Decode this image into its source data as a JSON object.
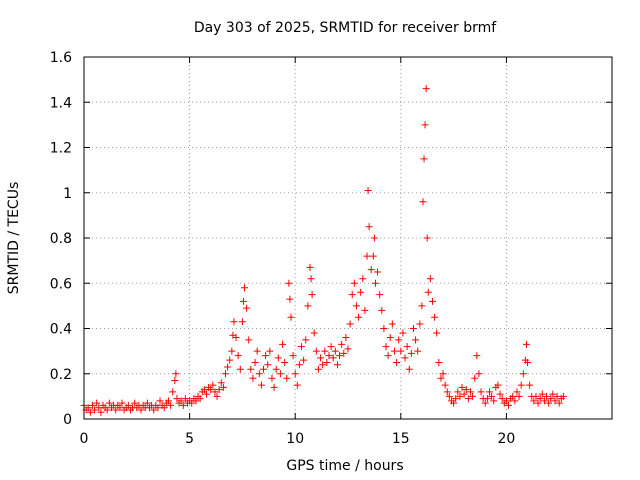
{
  "chart_data": {
    "type": "scatter",
    "title": "Day 303 of 2025, SRMTID for receiver brmf",
    "xlabel": "GPS time / hours",
    "ylabel": "SRMTID / TECUs",
    "xlim": [
      0,
      25
    ],
    "ylim": [
      0,
      1.6
    ],
    "xticks": [
      0,
      5,
      10,
      15,
      20
    ],
    "xtick_labels": [
      "0",
      "5",
      "10",
      "15",
      "20"
    ],
    "yticks": [
      0,
      0.2,
      0.4,
      0.6,
      0.8,
      1.0,
      1.2,
      1.4,
      1.6
    ],
    "ytick_labels": [
      "0",
      "0.2",
      "0.4",
      "0.6",
      "0.8",
      "1",
      "1.2",
      "1.4",
      "1.6"
    ],
    "grid": true,
    "marker": "plus",
    "color": "#ff0000",
    "series": [
      {
        "name": "SRMTID",
        "points": [
          [
            0.0,
            0.06
          ],
          [
            0.1,
            0.04
          ],
          [
            0.2,
            0.05
          ],
          [
            0.3,
            0.03
          ],
          [
            0.4,
            0.06
          ],
          [
            0.5,
            0.04
          ],
          [
            0.6,
            0.07
          ],
          [
            0.7,
            0.05
          ],
          [
            0.8,
            0.03
          ],
          [
            0.9,
            0.06
          ],
          [
            1.0,
            0.05
          ],
          [
            1.1,
            0.04
          ],
          [
            1.2,
            0.07
          ],
          [
            1.3,
            0.05
          ],
          [
            1.4,
            0.06
          ],
          [
            1.5,
            0.04
          ],
          [
            1.6,
            0.06
          ],
          [
            1.7,
            0.05
          ],
          [
            1.8,
            0.07
          ],
          [
            1.9,
            0.04
          ],
          [
            2.0,
            0.05
          ],
          [
            2.1,
            0.06
          ],
          [
            2.2,
            0.04
          ],
          [
            2.3,
            0.05
          ],
          [
            2.4,
            0.07
          ],
          [
            2.5,
            0.05
          ],
          [
            2.6,
            0.06
          ],
          [
            2.7,
            0.04
          ],
          [
            2.8,
            0.06
          ],
          [
            2.9,
            0.05
          ],
          [
            3.0,
            0.07
          ],
          [
            3.1,
            0.05
          ],
          [
            3.2,
            0.06
          ],
          [
            3.3,
            0.04
          ],
          [
            3.4,
            0.06
          ],
          [
            3.5,
            0.05
          ],
          [
            3.6,
            0.08
          ],
          [
            3.7,
            0.06
          ],
          [
            3.8,
            0.05
          ],
          [
            3.9,
            0.07
          ],
          [
            4.0,
            0.08
          ],
          [
            4.1,
            0.06
          ],
          [
            4.2,
            0.12
          ],
          [
            4.3,
            0.17
          ],
          [
            4.35,
            0.2
          ],
          [
            4.4,
            0.09
          ],
          [
            4.5,
            0.07
          ],
          [
            4.6,
            0.08
          ],
          [
            4.7,
            0.06
          ],
          [
            4.8,
            0.09
          ],
          [
            4.9,
            0.07
          ],
          [
            5.0,
            0.08
          ],
          [
            5.1,
            0.07
          ],
          [
            5.2,
            0.09
          ],
          [
            5.3,
            0.08
          ],
          [
            5.4,
            0.1
          ],
          [
            5.5,
            0.09
          ],
          [
            5.6,
            0.12
          ],
          [
            5.7,
            0.13
          ],
          [
            5.8,
            0.11
          ],
          [
            5.9,
            0.14
          ],
          [
            6.0,
            0.13
          ],
          [
            6.1,
            0.15
          ],
          [
            6.2,
            0.12
          ],
          [
            6.3,
            0.1
          ],
          [
            6.4,
            0.13
          ],
          [
            6.5,
            0.16
          ],
          [
            6.6,
            0.14
          ],
          [
            6.7,
            0.2
          ],
          [
            6.8,
            0.23
          ],
          [
            6.9,
            0.26
          ],
          [
            7.0,
            0.3
          ],
          [
            7.05,
            0.37
          ],
          [
            7.1,
            0.43
          ],
          [
            7.2,
            0.36
          ],
          [
            7.3,
            0.28
          ],
          [
            7.4,
            0.22
          ],
          [
            7.5,
            0.43
          ],
          [
            7.55,
            0.52
          ],
          [
            7.6,
            0.58
          ],
          [
            7.7,
            0.49
          ],
          [
            7.8,
            0.35
          ],
          [
            7.9,
            0.22
          ],
          [
            8.0,
            0.18
          ],
          [
            8.1,
            0.25
          ],
          [
            8.2,
            0.3
          ],
          [
            8.3,
            0.2
          ],
          [
            8.4,
            0.15
          ],
          [
            8.5,
            0.22
          ],
          [
            8.6,
            0.28
          ],
          [
            8.7,
            0.24
          ],
          [
            8.8,
            0.3
          ],
          [
            8.9,
            0.18
          ],
          [
            9.0,
            0.14
          ],
          [
            9.1,
            0.22
          ],
          [
            9.2,
            0.27
          ],
          [
            9.3,
            0.2
          ],
          [
            9.4,
            0.33
          ],
          [
            9.5,
            0.25
          ],
          [
            9.6,
            0.18
          ],
          [
            9.7,
            0.6
          ],
          [
            9.75,
            0.53
          ],
          [
            9.8,
            0.45
          ],
          [
            9.9,
            0.28
          ],
          [
            10.0,
            0.2
          ],
          [
            10.1,
            0.15
          ],
          [
            10.2,
            0.24
          ],
          [
            10.3,
            0.32
          ],
          [
            10.4,
            0.26
          ],
          [
            10.5,
            0.35
          ],
          [
            10.6,
            0.5
          ],
          [
            10.7,
            0.67
          ],
          [
            10.75,
            0.62
          ],
          [
            10.8,
            0.55
          ],
          [
            10.9,
            0.38
          ],
          [
            11.0,
            0.3
          ],
          [
            11.1,
            0.22
          ],
          [
            11.2,
            0.27
          ],
          [
            11.3,
            0.24
          ],
          [
            11.4,
            0.3
          ],
          [
            11.5,
            0.25
          ],
          [
            11.6,
            0.28
          ],
          [
            11.7,
            0.32
          ],
          [
            11.8,
            0.27
          ],
          [
            11.9,
            0.3
          ],
          [
            12.0,
            0.24
          ],
          [
            12.1,
            0.28
          ],
          [
            12.2,
            0.33
          ],
          [
            12.3,
            0.29
          ],
          [
            12.4,
            0.36
          ],
          [
            12.5,
            0.31
          ],
          [
            12.6,
            0.42
          ],
          [
            12.7,
            0.55
          ],
          [
            12.8,
            0.6
          ],
          [
            12.9,
            0.5
          ],
          [
            13.0,
            0.45
          ],
          [
            13.1,
            0.56
          ],
          [
            13.2,
            0.62
          ],
          [
            13.3,
            0.48
          ],
          [
            13.4,
            0.72
          ],
          [
            13.45,
            1.01
          ],
          [
            13.5,
            0.85
          ],
          [
            13.6,
            0.66
          ],
          [
            13.7,
            0.72
          ],
          [
            13.75,
            0.8
          ],
          [
            13.8,
            0.6
          ],
          [
            13.9,
            0.65
          ],
          [
            14.0,
            0.55
          ],
          [
            14.1,
            0.48
          ],
          [
            14.2,
            0.4
          ],
          [
            14.3,
            0.32
          ],
          [
            14.4,
            0.28
          ],
          [
            14.5,
            0.36
          ],
          [
            14.6,
            0.42
          ],
          [
            14.7,
            0.3
          ],
          [
            14.8,
            0.25
          ],
          [
            14.9,
            0.35
          ],
          [
            15.0,
            0.3
          ],
          [
            15.1,
            0.38
          ],
          [
            15.2,
            0.27
          ],
          [
            15.3,
            0.32
          ],
          [
            15.4,
            0.22
          ],
          [
            15.5,
            0.29
          ],
          [
            15.6,
            0.4
          ],
          [
            15.7,
            0.35
          ],
          [
            15.8,
            0.3
          ],
          [
            15.9,
            0.42
          ],
          [
            16.0,
            0.5
          ],
          [
            16.05,
            0.96
          ],
          [
            16.1,
            1.15
          ],
          [
            16.15,
            1.3
          ],
          [
            16.2,
            1.46
          ],
          [
            16.25,
            0.8
          ],
          [
            16.3,
            0.56
          ],
          [
            16.4,
            0.62
          ],
          [
            16.5,
            0.52
          ],
          [
            16.6,
            0.45
          ],
          [
            16.7,
            0.38
          ],
          [
            16.8,
            0.25
          ],
          [
            16.9,
            0.18
          ],
          [
            17.0,
            0.2
          ],
          [
            17.1,
            0.15
          ],
          [
            17.2,
            0.12
          ],
          [
            17.3,
            0.1
          ],
          [
            17.4,
            0.08
          ],
          [
            17.5,
            0.07
          ],
          [
            17.6,
            0.09
          ],
          [
            17.7,
            0.12
          ],
          [
            17.8,
            0.1
          ],
          [
            17.9,
            0.14
          ],
          [
            18.0,
            0.11
          ],
          [
            18.1,
            0.13
          ],
          [
            18.2,
            0.09
          ],
          [
            18.3,
            0.12
          ],
          [
            18.4,
            0.1
          ],
          [
            18.5,
            0.18
          ],
          [
            18.6,
            0.28
          ],
          [
            18.7,
            0.2
          ],
          [
            18.8,
            0.12
          ],
          [
            18.9,
            0.09
          ],
          [
            19.0,
            0.07
          ],
          [
            19.1,
            0.09
          ],
          [
            19.2,
            0.12
          ],
          [
            19.3,
            0.1
          ],
          [
            19.4,
            0.08
          ],
          [
            19.5,
            0.14
          ],
          [
            19.6,
            0.15
          ],
          [
            19.7,
            0.11
          ],
          [
            19.8,
            0.09
          ],
          [
            19.9,
            0.07
          ],
          [
            20.0,
            0.08
          ],
          [
            20.1,
            0.06
          ],
          [
            20.2,
            0.09
          ],
          [
            20.3,
            0.1
          ],
          [
            20.4,
            0.08
          ],
          [
            20.5,
            0.12
          ],
          [
            20.6,
            0.1
          ],
          [
            20.7,
            0.15
          ],
          [
            20.8,
            0.2
          ],
          [
            20.9,
            0.26
          ],
          [
            20.95,
            0.33
          ],
          [
            21.0,
            0.25
          ],
          [
            21.1,
            0.15
          ],
          [
            21.2,
            0.1
          ],
          [
            21.3,
            0.08
          ],
          [
            21.4,
            0.1
          ],
          [
            21.5,
            0.07
          ],
          [
            21.6,
            0.09
          ],
          [
            21.7,
            0.11
          ],
          [
            21.8,
            0.08
          ],
          [
            21.9,
            0.1
          ],
          [
            22.0,
            0.07
          ],
          [
            22.1,
            0.09
          ],
          [
            22.2,
            0.11
          ],
          [
            22.3,
            0.08
          ],
          [
            22.4,
            0.1
          ],
          [
            22.5,
            0.07
          ],
          [
            22.6,
            0.09
          ],
          [
            22.7,
            0.1
          ]
        ]
      }
    ]
  }
}
